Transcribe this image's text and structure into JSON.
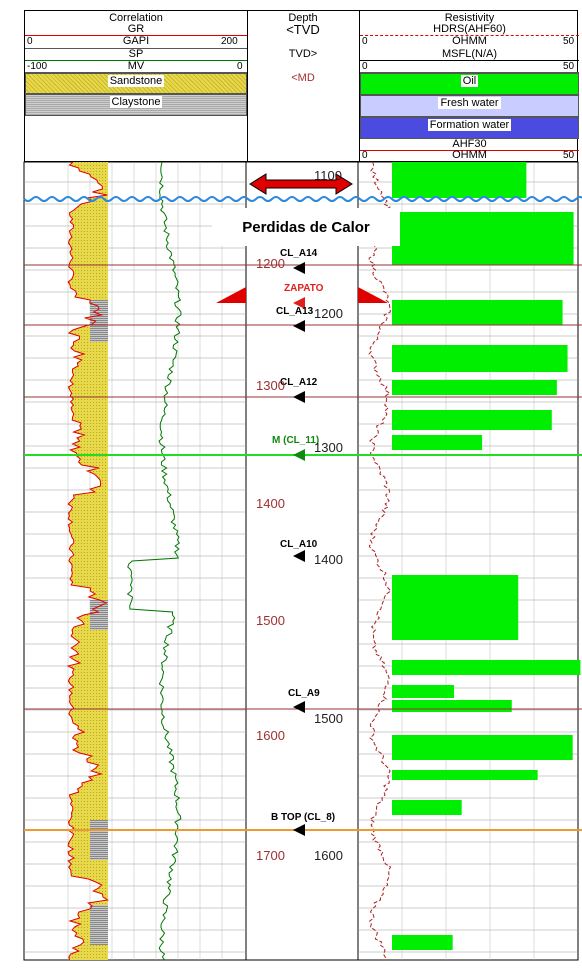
{
  "header": {
    "correlation_title": "Correlation",
    "depth_title": "Depth",
    "resistivity_title": "Resistivity",
    "gr_label": "GR",
    "gr_unit": "GAPI",
    "gr_min": "0",
    "gr_max": "200",
    "sp_label": "SP",
    "sp_unit": "MV",
    "sp_min": "-100",
    "sp_max": "0",
    "tvd_up": "<TVD",
    "tvd_down": "TVD>",
    "md_label": "<MD",
    "hdrs_label": "HDRS(AHF60)",
    "hdrs_unit": "OHMM",
    "hdrs_min": "0",
    "hdrs_max": "50",
    "msfl_label": "MSFL(N/A)",
    "msfl_min": "0",
    "msfl_max": "50",
    "ahf30_label": "AHF30",
    "ahf30_unit": "OHMM",
    "ahf30_min": "0",
    "ahf30_max": "50"
  },
  "legend": {
    "sandstone": "Sandstone",
    "claystone": "Claystone",
    "oil": "Oil",
    "fresh_water": "Fresh water",
    "formation_water": "Formation water"
  },
  "colors": {
    "sand": "#e8d94a",
    "clay": "#a8a8a8",
    "oil": "#00ee00",
    "fresh": "#c8ccff",
    "formation": "#4b4bdf",
    "gr_line": "#e00000",
    "sp_line": "#007700",
    "marker_green": "#22dd22",
    "marker_orange": "#ee9a33",
    "marker_red": "#993333"
  },
  "callout": "Perdidas de Calor",
  "markers": [
    {
      "name": "CL_A14",
      "color": "#000000"
    },
    {
      "name": "ZAPATO",
      "color": "#e02020"
    },
    {
      "name": "CL_A13",
      "color": "#000000"
    },
    {
      "name": "CL_A12",
      "color": "#000000"
    },
    {
      "name": "M (CL_11)",
      "color": "#118811"
    },
    {
      "name": "CL_A10",
      "color": "#000000"
    },
    {
      "name": "CL_A9",
      "color": "#000000"
    },
    {
      "name": "B TOP (CL_8)",
      "color": "#000000"
    }
  ],
  "depth_labels_md": [
    "1200",
    "1300",
    "1400",
    "1500",
    "1600",
    "1700"
  ],
  "depth_labels_tvd": [
    "1100",
    "1200",
    "1300",
    "1400",
    "1500",
    "1600"
  ],
  "chart_data": {
    "type": "line",
    "title": "",
    "tracks": [
      "Correlation",
      "Depth",
      "Resistivity"
    ],
    "series": [
      {
        "name": "GR",
        "unit": "GAPI",
        "range": [
          0,
          200
        ]
      },
      {
        "name": "SP",
        "unit": "MV",
        "range": [
          -100,
          0
        ]
      },
      {
        "name": "HDRS(AHF60)",
        "unit": "OHMM",
        "range": [
          0,
          50
        ]
      },
      {
        "name": "MSFL(N/A)",
        "range": [
          0,
          50
        ]
      },
      {
        "name": "AHF30",
        "unit": "OHMM",
        "range": [
          0,
          50
        ]
      }
    ],
    "md_ticks": [
      1200,
      1300,
      1400,
      1500,
      1600,
      1700
    ],
    "tvd_ticks": [
      1100,
      1200,
      1300,
      1400,
      1500,
      1600
    ]
  }
}
